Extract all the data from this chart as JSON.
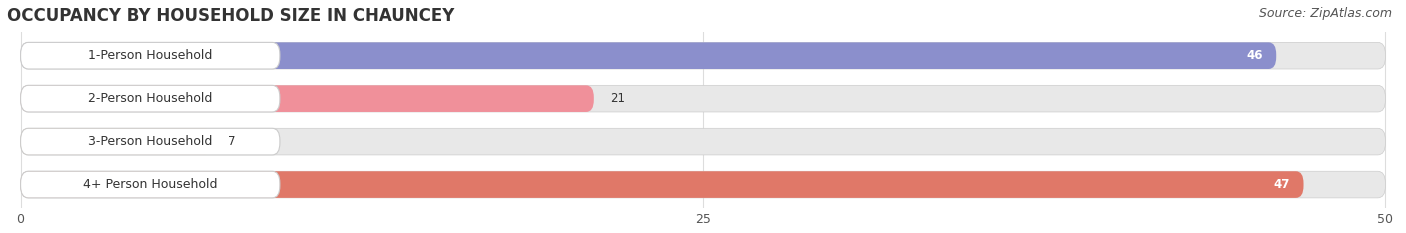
{
  "title": "OCCUPANCY BY HOUSEHOLD SIZE IN CHAUNCEY",
  "source": "Source: ZipAtlas.com",
  "categories": [
    "1-Person Household",
    "2-Person Household",
    "3-Person Household",
    "4+ Person Household"
  ],
  "values": [
    46,
    21,
    7,
    47
  ],
  "bar_colors": [
    "#8B8FCC",
    "#F0909A",
    "#F5C890",
    "#E07868"
  ],
  "xlim": [
    -0.5,
    50
  ],
  "xticks": [
    0,
    25,
    50
  ],
  "bg_color": "#ffffff",
  "bar_bg_color": "#e8e8e8",
  "label_box_color": "#f0f0f0",
  "title_fontsize": 12,
  "source_fontsize": 9,
  "label_fontsize": 9,
  "value_fontsize": 8.5,
  "bar_height": 0.62
}
